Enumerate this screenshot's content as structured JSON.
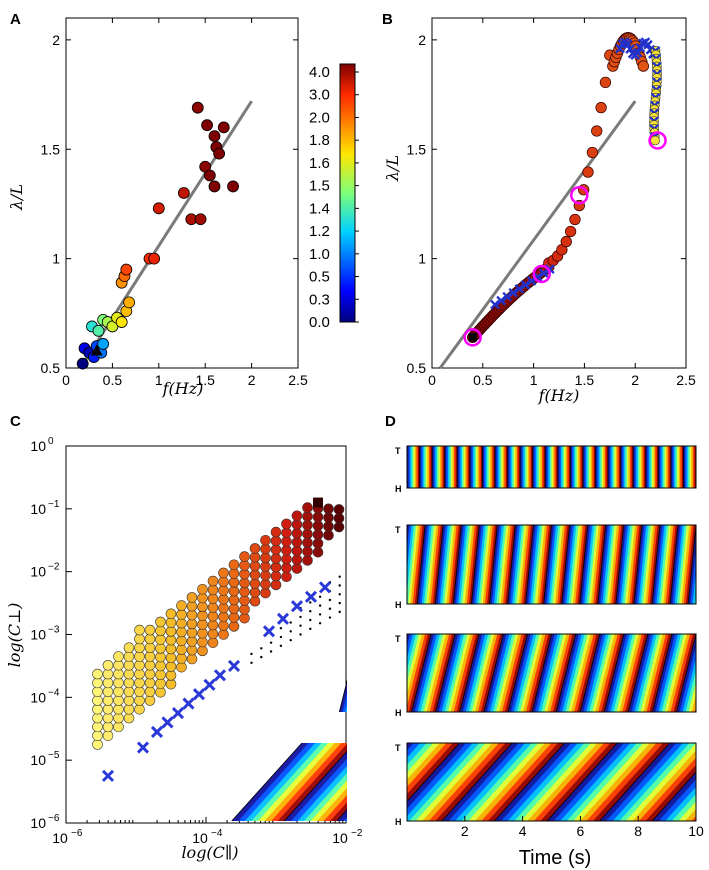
{
  "colorbar": {
    "ticks": [
      "4.0",
      "3.0",
      "2.0",
      "1.8",
      "1.6",
      "1.5",
      "1.4",
      "1.2",
      "1.0",
      "0.5",
      "0.3",
      "0.0"
    ]
  },
  "chart_data": [
    {
      "panel": "A",
      "type": "scatter",
      "xlabel": "f(Hz)",
      "ylabel": "λ/L",
      "xlim": [
        0,
        2.5
      ],
      "ylim": [
        0.5,
        2.1
      ],
      "xticks": [
        "0",
        "0.5",
        "1",
        "1.5",
        "2",
        "2.5"
      ],
      "yticks": [
        "0.5",
        "1",
        "1.5",
        "2"
      ],
      "fit_line": [
        [
          0.2,
          0.53
        ],
        [
          2.0,
          1.72
        ]
      ],
      "points": [
        [
          0.18,
          0.52,
          0.0
        ],
        [
          0.2,
          0.59,
          0.1
        ],
        [
          0.25,
          0.57,
          0.05
        ],
        [
          0.3,
          0.55,
          0.15
        ],
        [
          0.33,
          0.6,
          0.2
        ],
        [
          0.38,
          0.57,
          0.25
        ],
        [
          0.4,
          0.61,
          0.3
        ],
        [
          0.28,
          0.69,
          0.4
        ],
        [
          0.35,
          0.67,
          0.45
        ],
        [
          0.4,
          0.72,
          0.5
        ],
        [
          0.45,
          0.71,
          0.55
        ],
        [
          0.5,
          0.69,
          0.6
        ],
        [
          0.55,
          0.73,
          0.62
        ],
        [
          0.6,
          0.71,
          0.65
        ],
        [
          0.65,
          0.76,
          0.7
        ],
        [
          0.68,
          0.8,
          0.72
        ],
        [
          0.6,
          0.89,
          0.75
        ],
        [
          0.63,
          0.92,
          0.8
        ],
        [
          0.65,
          0.95,
          0.85
        ],
        [
          0.9,
          1.0,
          0.88
        ],
        [
          0.95,
          1.0,
          0.9
        ],
        [
          1.0,
          1.23,
          0.92
        ],
        [
          1.27,
          1.3,
          0.94
        ],
        [
          1.35,
          1.18,
          0.96
        ],
        [
          1.45,
          1.18,
          0.97
        ],
        [
          1.42,
          1.69,
          0.99
        ],
        [
          1.5,
          1.42,
          0.99
        ],
        [
          1.52,
          1.61,
          1.0
        ],
        [
          1.55,
          1.38,
          1.0
        ],
        [
          1.6,
          1.56,
          1.0
        ],
        [
          1.62,
          1.51,
          1.0
        ],
        [
          1.65,
          1.48,
          1.0
        ],
        [
          1.7,
          1.6,
          1.0
        ],
        [
          1.6,
          1.33,
          1.0
        ],
        [
          1.8,
          1.33,
          1.0
        ]
      ],
      "markers": [
        {
          "x": 0.33,
          "y": 0.58,
          "shape": "triangle"
        }
      ]
    },
    {
      "panel": "B",
      "type": "scatter",
      "xlabel": "f(Hz)",
      "ylabel": "λ/L",
      "xlim": [
        0,
        2.5
      ],
      "ylim": [
        0.5,
        2.1
      ],
      "xticks": [
        "0",
        "0.5",
        "1",
        "1.5",
        "2",
        "2.5"
      ],
      "yticks": [
        "0.5",
        "1",
        "1.5",
        "2"
      ],
      "fit_line": [
        [
          0.2,
          0.53
        ],
        [
          2.0,
          1.72
        ]
      ],
      "highlighted": [
        [
          0.4,
          0.64
        ],
        [
          1.08,
          0.93
        ],
        [
          1.45,
          1.29
        ],
        [
          2.22,
          1.54
        ]
      ],
      "markers": [
        {
          "x": 0.4,
          "y": 0.64,
          "shape": "square"
        }
      ]
    },
    {
      "panel": "C",
      "type": "scatter",
      "xlabel": "log(C∥)",
      "ylabel": "log(C⊥)",
      "xscale": "log",
      "yscale": "log",
      "xlim": [
        1e-06,
        0.01
      ],
      "ylim": [
        1e-06,
        1.0
      ],
      "xticks": [
        "10",
        "10",
        "10"
      ],
      "xtick_exps": [
        "−6",
        "−4",
        "−2"
      ],
      "yticks": [
        "10",
        "10",
        "10",
        "10",
        "10",
        "10",
        "10"
      ],
      "ytick_exps": [
        "−6",
        "−5",
        "−4",
        "−3",
        "−2",
        "−1",
        "0"
      ],
      "cross_points_log": [
        [
          -5.4,
          -5.25
        ],
        [
          -4.9,
          -4.8
        ],
        [
          -4.7,
          -4.55
        ],
        [
          -4.55,
          -4.4
        ],
        [
          -4.4,
          -4.25
        ],
        [
          -4.25,
          -4.1
        ],
        [
          -4.1,
          -3.95
        ],
        [
          -3.95,
          -3.8
        ],
        [
          -3.8,
          -3.65
        ],
        [
          -3.6,
          -3.5
        ],
        [
          -3.1,
          -2.95
        ],
        [
          -2.9,
          -2.75
        ],
        [
          -2.7,
          -2.55
        ],
        [
          -2.5,
          -2.4
        ],
        [
          -2.3,
          -2.25
        ]
      ]
    },
    {
      "panel": "D",
      "type": "heatmap",
      "xlabel": "Time (s)",
      "xlim": [
        0,
        10
      ],
      "xticks": [
        "2",
        "4",
        "6",
        "8",
        "10"
      ],
      "ylabels_top": "T",
      "ylabels_bottom": "H",
      "subplots": [
        {
          "cycles": 23,
          "tilt": 0.0
        },
        {
          "cycles": 16,
          "tilt": 0.1
        },
        {
          "cycles": 12,
          "tilt": 0.25
        },
        {
          "cycles": 5.5,
          "tilt": 0.9
        }
      ]
    }
  ],
  "labels": {
    "A": "A",
    "B": "B",
    "C": "C",
    "D": "D"
  }
}
